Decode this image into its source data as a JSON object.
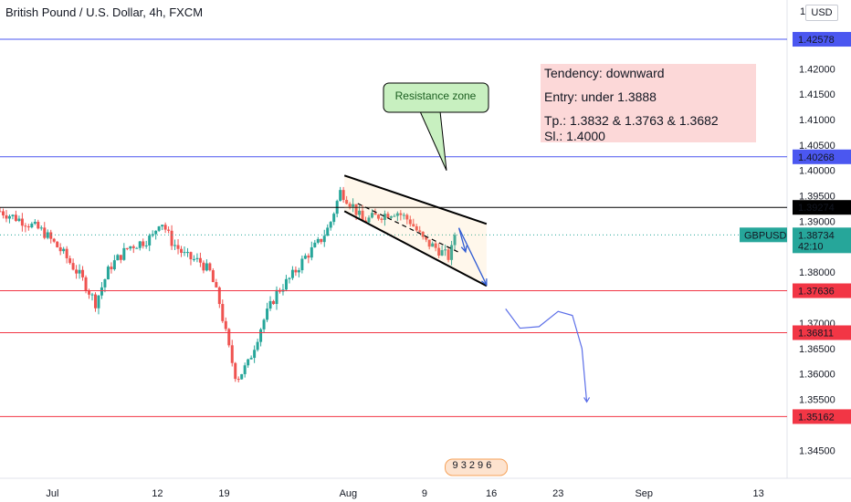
{
  "window": {
    "title": "British Pound / U.S. Dollar, 4h, FXCM",
    "currency_badge": "USD",
    "scale_label": "1"
  },
  "chart_data": {
    "type": "candlestick",
    "symbol": "GBPUSD",
    "timeframe": "4h",
    "y_range": [
      1.3395,
      1.4335
    ],
    "y_ticks": [
      "1.42000",
      "1.41500",
      "1.41000",
      "1.40500",
      "1.40000",
      "1.39500",
      "1.39000",
      "1.38000",
      "1.37000",
      "1.36500",
      "1.36000",
      "1.35500",
      "1.34500"
    ],
    "x_ticks": [
      {
        "label": "Jul",
        "day": 1
      },
      {
        "label": "12",
        "day": 12
      },
      {
        "label": "19",
        "day": 19
      },
      {
        "label": "Aug",
        "day": 32
      },
      {
        "label": "9",
        "day": 40
      },
      {
        "label": "16",
        "day": 47
      },
      {
        "label": "23",
        "day": 54
      },
      {
        "label": "Sep",
        "day": 63
      },
      {
        "label": "13",
        "day": 75
      }
    ],
    "x_range_days": [
      -4.5,
      78
    ],
    "price_path": [
      [
        -4.5,
        1.392
      ],
      [
        -2,
        1.39
      ],
      [
        0,
        1.388
      ],
      [
        2,
        1.384
      ],
      [
        4,
        1.379
      ],
      [
        5.5,
        1.374
      ],
      [
        7,
        1.381
      ],
      [
        9,
        1.385
      ],
      [
        10.5,
        1.386
      ],
      [
        11.5,
        1.387
      ],
      [
        12.3,
        1.3905
      ],
      [
        13.5,
        1.386
      ],
      [
        15,
        1.383
      ],
      [
        16.5,
        1.382
      ],
      [
        17.5,
        1.38
      ],
      [
        18.5,
        1.374
      ],
      [
        19.6,
        1.364
      ],
      [
        20.3,
        1.359
      ],
      [
        21.5,
        1.362
      ],
      [
        23,
        1.37
      ],
      [
        24.5,
        1.376
      ],
      [
        26,
        1.379
      ],
      [
        27.5,
        1.383
      ],
      [
        29,
        1.386
      ],
      [
        30,
        1.389
      ],
      [
        31.2,
        1.396
      ],
      [
        32.5,
        1.393
      ],
      [
        33.5,
        1.39
      ],
      [
        35,
        1.391
      ],
      [
        37,
        1.392
      ],
      [
        38.5,
        1.39
      ],
      [
        40,
        1.386
      ],
      [
        41,
        1.385
      ],
      [
        42.5,
        1.383
      ],
      [
        43.5,
        1.3873
      ]
    ],
    "horizontal_levels": [
      {
        "price": 1.42578,
        "label": "1.42578",
        "kind": "blue"
      },
      {
        "price": 1.40268,
        "label": "1.40268",
        "kind": "blue"
      },
      {
        "price": 1.39274,
        "label": "1.39274",
        "kind": "black"
      },
      {
        "price": 1.37636,
        "label": "1.37636",
        "kind": "red"
      },
      {
        "price": 1.36811,
        "label": "1.36811",
        "kind": "red"
      },
      {
        "price": 1.35162,
        "label": "1.35162",
        "kind": "red"
      }
    ],
    "current_price": {
      "symbol": "GBPUSD",
      "price": 1.38734,
      "label": "1.38734",
      "countdown": "42:10"
    },
    "channel": {
      "upper": [
        [
          31.6,
          1.399
        ],
        [
          46.5,
          1.3895
        ]
      ],
      "lower": [
        [
          31.6,
          1.392
        ],
        [
          46.5,
          1.3773
        ]
      ],
      "mid": [
        [
          33,
          1.3935
        ],
        [
          43.5,
          1.384
        ]
      ]
    },
    "projection": [
      [
        48.5,
        1.3728
      ],
      [
        50,
        1.369
      ],
      [
        52,
        1.3693
      ],
      [
        54,
        1.3723
      ],
      [
        55.5,
        1.3715
      ],
      [
        56.5,
        1.365
      ],
      [
        57,
        1.3545
      ]
    ],
    "callout": {
      "text": "Resistance zone",
      "tip": [
        42.3,
        1.4
      ]
    },
    "info_box": {
      "line1": "Tendency: downward",
      "line2": "Entry: under 1.3888",
      "line3": "Tp.: 1.3832 &  1.3763 & 1.3682",
      "line4": "Sl.: 1.4000"
    },
    "events_marker": {
      "day": 43.5,
      "text": "9  3 2 9 6"
    },
    "colors": {
      "up": "#26a69a",
      "down": "#ef5350",
      "blue_level": "#4b57f0",
      "red_level": "#f23645",
      "black_level": "#000000",
      "current": "#26a69a",
      "callout_fill": "#c8f0c0",
      "info_fill": "#fabebe"
    }
  }
}
